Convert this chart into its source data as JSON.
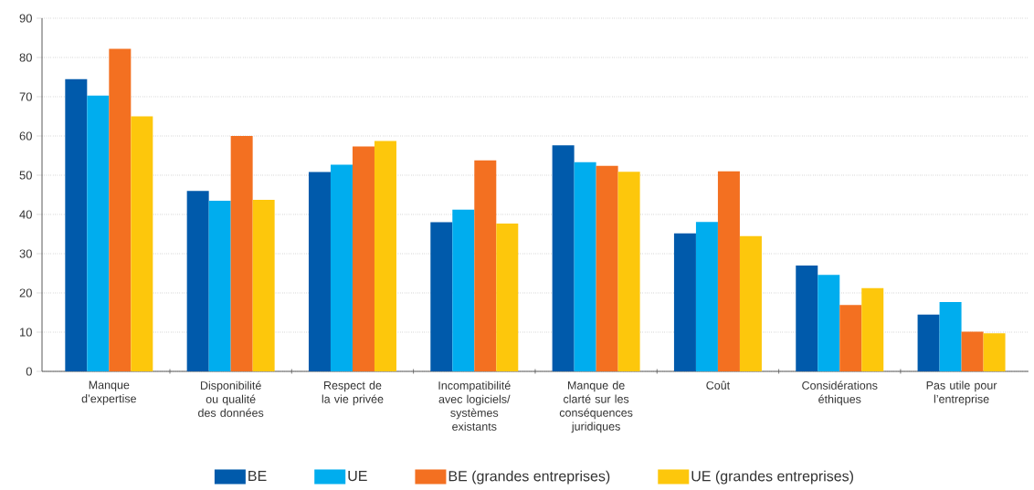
{
  "chart_data": {
    "type": "bar",
    "categories": [
      "Manque d’expertise",
      "Disponibilité ou qualité des données",
      "Respect de la vie privée",
      "Incompatibilité avec logiciels/ systèmes existants",
      "Manque de clarté sur les conséquences juridiques",
      "Coût",
      "Considérations éthiques",
      "Pas utile pour l’entreprise"
    ],
    "series": [
      {
        "name": "BE",
        "color": "#005aab",
        "values": [
          74.5,
          46,
          50.8,
          38,
          57.6,
          35.2,
          27,
          14.5
        ]
      },
      {
        "name": "UE",
        "color": "#00adee",
        "values": [
          70.3,
          43.5,
          52.7,
          41.2,
          53.3,
          38.1,
          24.6,
          17.7
        ]
      },
      {
        "name": "BE (grandes entreprises)",
        "color": "#f37021",
        "values": [
          82.2,
          60,
          57.3,
          53.8,
          52.4,
          51,
          16.9,
          10.1
        ]
      },
      {
        "name": "UE (grandes entreprises)",
        "color": "#fdc70c",
        "values": [
          65,
          43.7,
          58.7,
          37.7,
          50.9,
          34.5,
          21.2,
          9.7
        ]
      }
    ],
    "ylim": [
      0,
      90
    ],
    "yticks": [
      0,
      10,
      20,
      30,
      40,
      50,
      60,
      70,
      80,
      90
    ],
    "grid": "y",
    "legend": "bottom"
  }
}
